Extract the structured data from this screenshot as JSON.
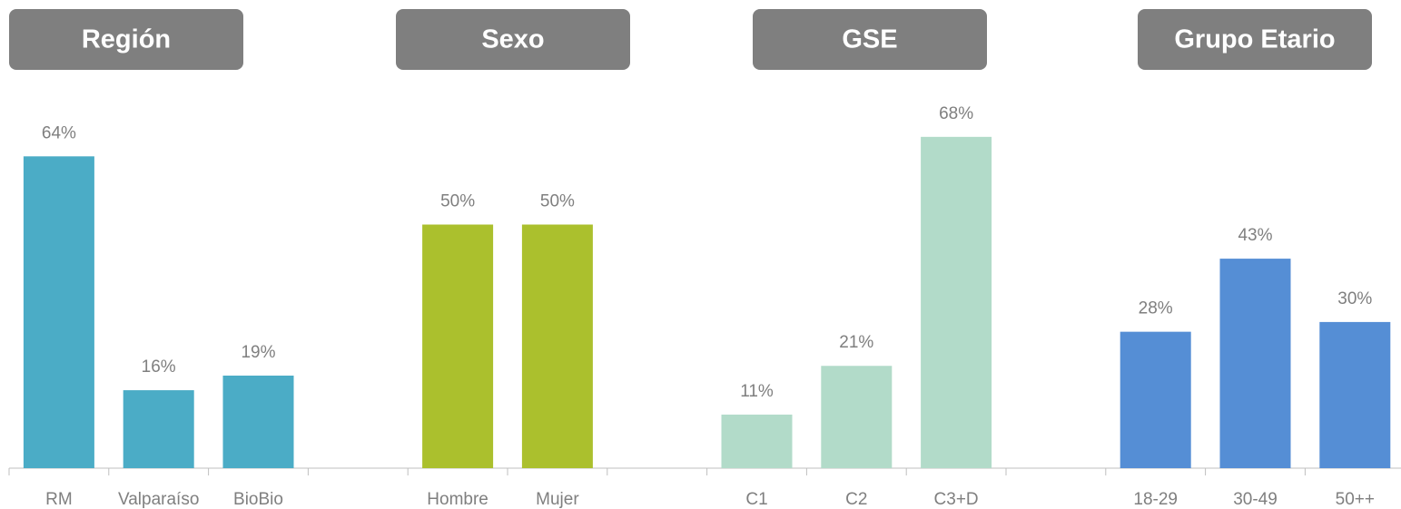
{
  "chart_data": {
    "type": "bar",
    "categories": [
      "RM",
      "Valparaíso",
      "BioBio",
      null,
      "Hombre",
      "Mujer",
      null,
      "C1",
      "C2",
      "C3+D",
      null,
      "18-29",
      "30-49",
      "50++"
    ],
    "series": [
      {
        "name": "Región",
        "color": "#4bacc6",
        "values": [
          64,
          16,
          19,
          null,
          null,
          null,
          null,
          null,
          null,
          null,
          null,
          null,
          null,
          null
        ],
        "value_labels": [
          "64%",
          "16%",
          "19%",
          null,
          null,
          null,
          null,
          null,
          null,
          null,
          null,
          null,
          null,
          null
        ]
      },
      {
        "name": "Sexo",
        "color": "#abc02d",
        "values": [
          null,
          null,
          null,
          null,
          50,
          50,
          null,
          null,
          null,
          null,
          null,
          null,
          null,
          null
        ],
        "value_labels": [
          null,
          null,
          null,
          null,
          "50%",
          "50%",
          null,
          null,
          null,
          null,
          null,
          null,
          null,
          null
        ]
      },
      {
        "name": "GSE",
        "color": "#b2dbc9",
        "values": [
          null,
          null,
          null,
          null,
          null,
          null,
          null,
          11,
          21,
          68,
          null,
          null,
          null,
          null
        ],
        "value_labels": [
          null,
          null,
          null,
          null,
          null,
          null,
          null,
          "11%",
          "21%",
          "68%",
          null,
          null,
          null,
          null
        ]
      },
      {
        "name": "Grupo Etario",
        "color": "#558ed5",
        "values": [
          null,
          null,
          null,
          null,
          null,
          null,
          null,
          null,
          null,
          null,
          null,
          28,
          43,
          30
        ],
        "value_labels": [
          null,
          null,
          null,
          null,
          null,
          null,
          null,
          null,
          null,
          null,
          null,
          "28%",
          "43%",
          "30%"
        ]
      }
    ],
    "ylim": [
      0,
      100
    ]
  }
}
